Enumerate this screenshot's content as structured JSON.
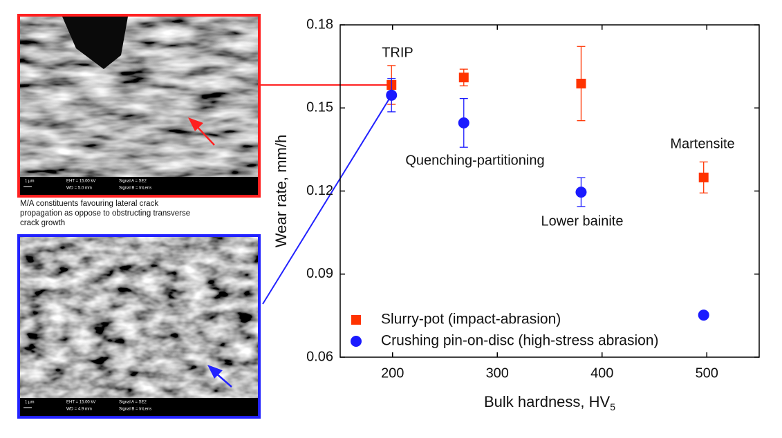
{
  "chart_data": {
    "type": "scatter",
    "x_label": "Bulk hardness, HV",
    "x_label_subscript": "5",
    "y_label": "Wear rate, mm/h",
    "xlim": [
      150,
      550
    ],
    "xticks": [
      200,
      300,
      400,
      500
    ],
    "ylim": [
      0.06,
      0.18
    ],
    "yticks": [
      0.06,
      0.09,
      0.12,
      0.15,
      0.18
    ],
    "legend": "lower left",
    "annotations": [
      "TRIP",
      "Quenching-partitioning",
      "Lower bainite",
      "Martensite"
    ],
    "series": [
      {
        "name": "Slurry-pot (impact-abrasion)",
        "color": "#ff3300",
        "marker": "square",
        "x": [
          199,
          268,
          380,
          497
        ],
        "values": [
          0.1583,
          0.161,
          0.1588,
          0.1249
        ],
        "errors": [
          0.007,
          0.003,
          0.0134,
          0.0056
        ]
      },
      {
        "name": "Crushing pin-on-disc (high-stress abrasion)",
        "color": "#1a1aff",
        "marker": "circle",
        "x": [
          199,
          268,
          380,
          497
        ],
        "values": [
          0.1546,
          0.1446,
          0.1196,
          0.0752
        ],
        "errors": [
          0.006,
          0.0088,
          0.0052,
          null
        ]
      }
    ]
  },
  "images": [
    {
      "scale": "1 µm",
      "eht": "EHT = 15.00 kV",
      "wd": "WD = 5.0 mm",
      "signal_a": "Signal A = SE2",
      "signal_b": "Signal B = InLens"
    },
    {
      "scale": "1 µm",
      "eht": "EHT = 15.00 kV",
      "wd": "WD = 4.9 mm",
      "signal_a": "Signal A = SE2",
      "signal_b": "Signal B = InLens"
    }
  ],
  "caption": [
    "M/A constituents favouring lateral crack",
    "propagation as oppose to obstructing transverse",
    "crack growth"
  ]
}
